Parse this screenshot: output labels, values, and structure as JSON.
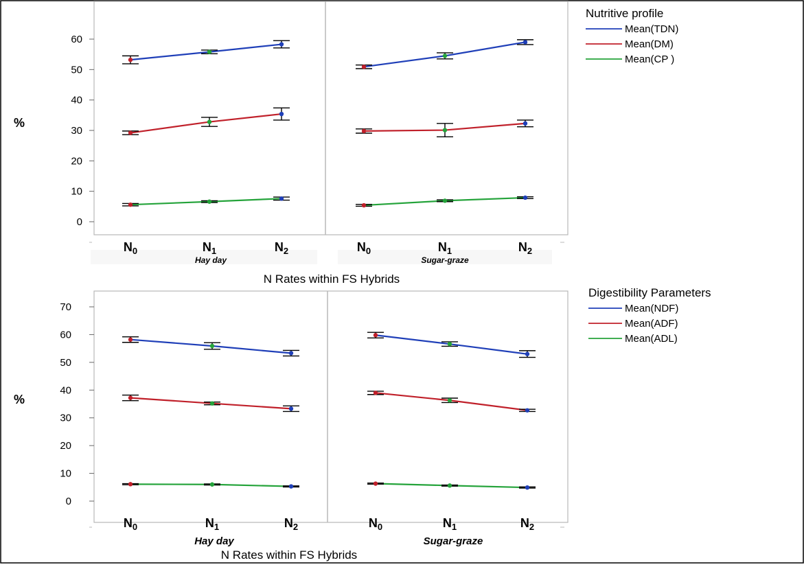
{
  "chart_data": [
    {
      "type": "line",
      "y_unit_label": "%",
      "ylim": [
        -2,
        69
      ],
      "yticks": [
        0,
        10,
        20,
        30,
        40,
        50,
        60
      ],
      "panels": [
        {
          "name": "Hay day",
          "categories": [
            "N0",
            "N1",
            "N2"
          ]
        },
        {
          "name": "Sugar-graze",
          "categories": [
            "N0",
            "N1",
            "N2"
          ]
        }
      ],
      "category_labels": [
        {
          "base": "N",
          "sub": "0"
        },
        {
          "base": "N",
          "sub": "1"
        },
        {
          "base": "N",
          "sub": "2"
        }
      ],
      "xlabel": "N Rates within FS Hybrids",
      "legend_title": "Nutritive profile",
      "legend_position": "right",
      "series": [
        {
          "name": "Mean(TDN)",
          "color": "#1f3fb8",
          "values": [
            [
              53.2,
              55.8,
              58.3
            ],
            [
              50.9,
              54.5,
              59.0
            ]
          ],
          "errors": [
            [
              1.3,
              0.6,
              1.2
            ],
            [
              0.6,
              1.0,
              0.8
            ]
          ]
        },
        {
          "name": "Mean(DM)",
          "color": "#c0202a",
          "values": [
            [
              29.2,
              32.8,
              35.4
            ],
            [
              29.8,
              30.1,
              32.3
            ]
          ],
          "errors": [
            [
              0.6,
              1.5,
              2.0
            ],
            [
              0.7,
              2.2,
              1.1
            ]
          ]
        },
        {
          "name": "Mean(CP )",
          "color": "#24a33a",
          "values": [
            [
              5.6,
              6.6,
              7.6
            ],
            [
              5.4,
              6.9,
              7.9
            ]
          ],
          "errors": [
            [
              0.4,
              0.3,
              0.5
            ],
            [
              0.3,
              0.3,
              0.3
            ]
          ]
        }
      ]
    },
    {
      "type": "line",
      "y_unit_label": "%",
      "ylim": [
        -4,
        75
      ],
      "yticks": [
        0,
        10,
        20,
        30,
        40,
        50,
        60,
        70
      ],
      "panels": [
        {
          "name": "Hay day",
          "categories": [
            "N0",
            "N1",
            "N2"
          ]
        },
        {
          "name": "Sugar-graze",
          "categories": [
            "N0",
            "N1",
            "N2"
          ]
        }
      ],
      "category_labels": [
        {
          "base": "N",
          "sub": "0"
        },
        {
          "base": "N",
          "sub": "1"
        },
        {
          "base": "N",
          "sub": "2"
        }
      ],
      "xlabel": "N Rates within FS Hybrids",
      "legend_title": "Digestibility Parameters",
      "legend_position": "right",
      "series": [
        {
          "name": "Mean(NDF)",
          "color": "#1f3fb8",
          "values": [
            [
              58.2,
              55.9,
              53.3
            ],
            [
              59.8,
              56.6,
              53.0
            ]
          ],
          "errors": [
            [
              1.0,
              1.2,
              1.0
            ],
            [
              1.0,
              0.8,
              1.2
            ]
          ]
        },
        {
          "name": "Mean(ADF)",
          "color": "#c0202a",
          "values": [
            [
              37.2,
              35.2,
              33.3
            ],
            [
              39.0,
              36.3,
              32.7
            ]
          ],
          "errors": [
            [
              1.0,
              0.5,
              1.0
            ],
            [
              0.6,
              0.8,
              0.4
            ]
          ]
        },
        {
          "name": "Mean(ADL)",
          "color": "#24a33a",
          "values": [
            [
              6.1,
              6.0,
              5.3
            ],
            [
              6.3,
              5.6,
              4.9
            ]
          ],
          "errors": [
            [
              0.2,
              0.2,
              0.2
            ],
            [
              0.2,
              0.2,
              0.2
            ]
          ]
        }
      ]
    }
  ]
}
